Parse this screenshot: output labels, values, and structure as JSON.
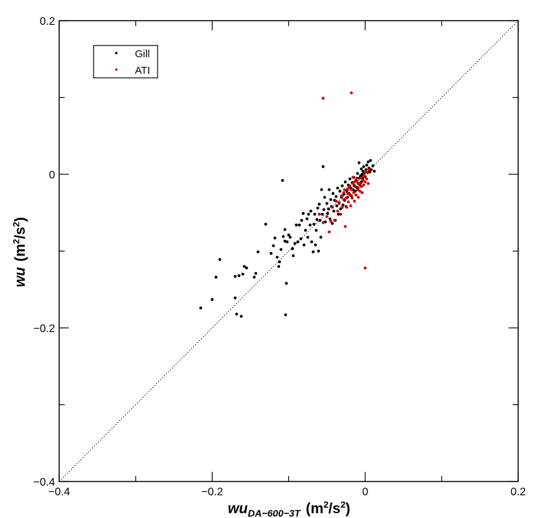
{
  "chart_data": {
    "type": "scatter",
    "xlabel": {
      "main": "wu",
      "subscript": "DA−600−3T",
      "units_pre": "(m",
      "units_sup1": "2",
      "units_mid": "/s",
      "units_sup2": "2",
      "units_post": ")"
    },
    "ylabel": {
      "main": "wu",
      "units_pre": "(m",
      "units_sup1": "2",
      "units_mid": "/s",
      "units_sup2": "2",
      "units_post": ")"
    },
    "xlim": [
      -0.4,
      0.2
    ],
    "ylim": [
      -0.4,
      0.2
    ],
    "x_ticks": [
      {
        "value": -0.4,
        "label": "−0.4"
      },
      {
        "value": -0.2,
        "label": "−0.2"
      },
      {
        "value": 0.0,
        "label": "0"
      },
      {
        "value": 0.2,
        "label": "0.2"
      }
    ],
    "y_ticks": [
      {
        "value": -0.4,
        "label": "−0.4"
      },
      {
        "value": -0.2,
        "label": "−0.2"
      },
      {
        "value": 0.0,
        "label": "0"
      },
      {
        "value": 0.2,
        "label": "0.2"
      }
    ],
    "grid": false,
    "legend_position": "top-left",
    "reference_line": "y = x (dotted)",
    "series": [
      {
        "name": "Gill",
        "color": "#000000",
        "points": [
          [
            -0.215,
            -0.174
          ],
          [
            -0.2,
            -0.163
          ],
          [
            -0.195,
            -0.134
          ],
          [
            -0.19,
            -0.111
          ],
          [
            -0.17,
            -0.161
          ],
          [
            -0.17,
            -0.133
          ],
          [
            -0.168,
            -0.182
          ],
          [
            -0.165,
            -0.132
          ],
          [
            -0.162,
            -0.185
          ],
          [
            -0.16,
            -0.13
          ],
          [
            -0.158,
            -0.12
          ],
          [
            -0.155,
            -0.122
          ],
          [
            -0.145,
            -0.134
          ],
          [
            -0.143,
            -0.129
          ],
          [
            -0.14,
            -0.101
          ],
          [
            -0.13,
            -0.065
          ],
          [
            -0.123,
            -0.103
          ],
          [
            -0.12,
            -0.093
          ],
          [
            -0.118,
            -0.083
          ],
          [
            -0.115,
            -0.108
          ],
          [
            -0.113,
            -0.12
          ],
          [
            -0.112,
            -0.114
          ],
          [
            -0.11,
            -0.098
          ],
          [
            -0.108,
            -0.008
          ],
          [
            -0.107,
            -0.081
          ],
          [
            -0.105,
            -0.087
          ],
          [
            -0.105,
            -0.072
          ],
          [
            -0.104,
            -0.183
          ],
          [
            -0.103,
            -0.142
          ],
          [
            -0.102,
            -0.088
          ],
          [
            -0.1,
            -0.079
          ],
          [
            -0.098,
            -0.082
          ],
          [
            -0.095,
            -0.097
          ],
          [
            -0.094,
            -0.106
          ],
          [
            -0.092,
            -0.09
          ],
          [
            -0.09,
            -0.066
          ],
          [
            -0.088,
            -0.088
          ],
          [
            -0.086,
            -0.066
          ],
          [
            -0.084,
            -0.084
          ],
          [
            -0.083,
            -0.06
          ],
          [
            -0.081,
            -0.051
          ],
          [
            -0.08,
            -0.092
          ],
          [
            -0.078,
            -0.073
          ],
          [
            -0.076,
            -0.058
          ],
          [
            -0.075,
            -0.082
          ],
          [
            -0.074,
            -0.052
          ],
          [
            -0.072,
            -0.066
          ],
          [
            -0.071,
            -0.048
          ],
          [
            -0.07,
            -0.088
          ],
          [
            -0.068,
            -0.101
          ],
          [
            -0.067,
            -0.065
          ],
          [
            -0.066,
            -0.052
          ],
          [
            -0.065,
            -0.092
          ],
          [
            -0.064,
            -0.073
          ],
          [
            -0.063,
            -0.059
          ],
          [
            -0.062,
            -0.044
          ],
          [
            -0.061,
            -0.1
          ],
          [
            -0.06,
            -0.039
          ],
          [
            -0.059,
            -0.06
          ],
          [
            -0.058,
            -0.082
          ],
          [
            -0.057,
            -0.02
          ],
          [
            -0.056,
            -0.052
          ],
          [
            -0.055,
            0.01
          ],
          [
            -0.054,
            -0.046
          ],
          [
            -0.053,
            -0.03
          ],
          [
            -0.052,
            -0.062
          ],
          [
            -0.05,
            -0.038
          ],
          [
            -0.049,
            -0.051
          ],
          [
            -0.048,
            -0.045
          ],
          [
            -0.047,
            -0.02
          ],
          [
            -0.046,
            -0.058
          ],
          [
            -0.045,
            -0.033
          ],
          [
            -0.044,
            -0.042
          ],
          [
            -0.043,
            -0.064
          ],
          [
            -0.042,
            -0.025
          ],
          [
            -0.041,
            -0.048
          ],
          [
            -0.04,
            -0.034
          ],
          [
            -0.039,
            -0.06
          ],
          [
            -0.038,
            -0.029
          ],
          [
            -0.037,
            -0.041
          ],
          [
            -0.036,
            -0.018
          ],
          [
            -0.035,
            -0.052
          ],
          [
            -0.034,
            -0.037
          ],
          [
            -0.033,
            -0.022
          ],
          [
            -0.032,
            -0.045
          ],
          [
            -0.031,
            -0.03
          ],
          [
            -0.03,
            -0.015
          ],
          [
            -0.029,
            -0.04
          ],
          [
            -0.028,
            -0.026
          ],
          [
            -0.027,
            -0.034
          ],
          [
            -0.026,
            -0.01
          ],
          [
            -0.025,
            -0.042
          ],
          [
            -0.024,
            -0.022
          ],
          [
            -0.023,
            -0.03
          ],
          [
            -0.022,
            -0.014
          ],
          [
            -0.021,
            -0.025
          ],
          [
            -0.02,
            -0.006
          ],
          [
            -0.019,
            -0.018
          ],
          [
            -0.018,
            -0.028
          ],
          [
            -0.017,
            -0.011
          ],
          [
            -0.016,
            -0.02
          ],
          [
            -0.015,
            -0.004
          ],
          [
            -0.014,
            -0.015
          ],
          [
            -0.013,
            -0.022
          ],
          [
            -0.012,
            -0.008
          ],
          [
            -0.011,
            -0.017
          ],
          [
            -0.01,
            0.001
          ],
          [
            -0.009,
            -0.012
          ],
          [
            -0.008,
            -0.005
          ],
          [
            -0.008,
            0.015
          ],
          [
            -0.007,
            -0.014
          ],
          [
            -0.006,
            -0.002
          ],
          [
            -0.005,
            0.007
          ],
          [
            -0.005,
            -0.01
          ],
          [
            -0.004,
            0.0
          ],
          [
            -0.003,
            0.004
          ],
          [
            -0.003,
            -0.006
          ],
          [
            -0.002,
            0.01
          ],
          [
            -0.001,
            0.002
          ],
          [
            0.0,
            -0.003
          ],
          [
            0.001,
            0.006
          ],
          [
            0.002,
            0.012
          ],
          [
            0.003,
            0.002
          ],
          [
            0.004,
            0.016
          ],
          [
            0.005,
            0.008
          ],
          [
            0.006,
            0.003
          ],
          [
            0.007,
            0.018
          ],
          [
            0.008,
            0.006
          ],
          [
            0.01,
            0.011
          ],
          [
            0.012,
            0.004
          ]
        ]
      },
      {
        "name": "ATI",
        "color": "#cc0000",
        "points": [
          [
            -0.055,
            0.099
          ],
          [
            -0.018,
            0.106
          ],
          [
            0.0,
            -0.122
          ],
          [
            -0.06,
            -0.052
          ],
          [
            -0.055,
            -0.063
          ],
          [
            -0.05,
            -0.055
          ],
          [
            -0.047,
            -0.075
          ],
          [
            -0.045,
            -0.061
          ],
          [
            -0.043,
            -0.043
          ],
          [
            -0.04,
            -0.06
          ],
          [
            -0.038,
            -0.035
          ],
          [
            -0.036,
            -0.048
          ],
          [
            -0.034,
            -0.038
          ],
          [
            -0.032,
            -0.052
          ],
          [
            -0.031,
            -0.028
          ],
          [
            -0.03,
            -0.043
          ],
          [
            -0.028,
            -0.033
          ],
          [
            -0.027,
            -0.02
          ],
          [
            -0.026,
            -0.068
          ],
          [
            -0.025,
            -0.031
          ],
          [
            -0.024,
            -0.043
          ],
          [
            -0.023,
            -0.025
          ],
          [
            -0.022,
            -0.036
          ],
          [
            -0.021,
            -0.016
          ],
          [
            -0.02,
            -0.027
          ],
          [
            -0.019,
            -0.041
          ],
          [
            -0.018,
            -0.02
          ],
          [
            -0.017,
            -0.031
          ],
          [
            -0.016,
            -0.012
          ],
          [
            -0.015,
            -0.024
          ],
          [
            -0.014,
            -0.035
          ],
          [
            -0.013,
            -0.016
          ],
          [
            -0.012,
            -0.027
          ],
          [
            -0.011,
            -0.009
          ],
          [
            -0.01,
            -0.02
          ],
          [
            -0.009,
            -0.03
          ],
          [
            -0.008,
            -0.012
          ],
          [
            -0.007,
            -0.022
          ],
          [
            -0.006,
            -0.005
          ],
          [
            -0.005,
            -0.016
          ],
          [
            -0.004,
            -0.024
          ],
          [
            -0.003,
            -0.008
          ],
          [
            -0.002,
            -0.014
          ],
          [
            -0.001,
            -0.002
          ],
          [
            0.0,
            -0.01
          ],
          [
            0.001,
            0.004
          ],
          [
            0.002,
            -0.006
          ],
          [
            0.003,
            0.002
          ],
          [
            0.004,
            -0.012
          ],
          [
            0.005,
            0.006
          ],
          [
            -0.011,
            -0.005
          ],
          [
            -0.014,
            -0.01
          ],
          [
            -0.009,
            -0.018
          ],
          [
            -0.006,
            -0.012
          ],
          [
            -0.003,
            -0.003
          ],
          [
            0.0,
            0.003
          ],
          [
            -0.02,
            -0.015
          ],
          [
            -0.023,
            -0.019
          ],
          [
            -0.028,
            -0.024
          ],
          [
            -0.016,
            -0.004
          ]
        ]
      }
    ]
  }
}
